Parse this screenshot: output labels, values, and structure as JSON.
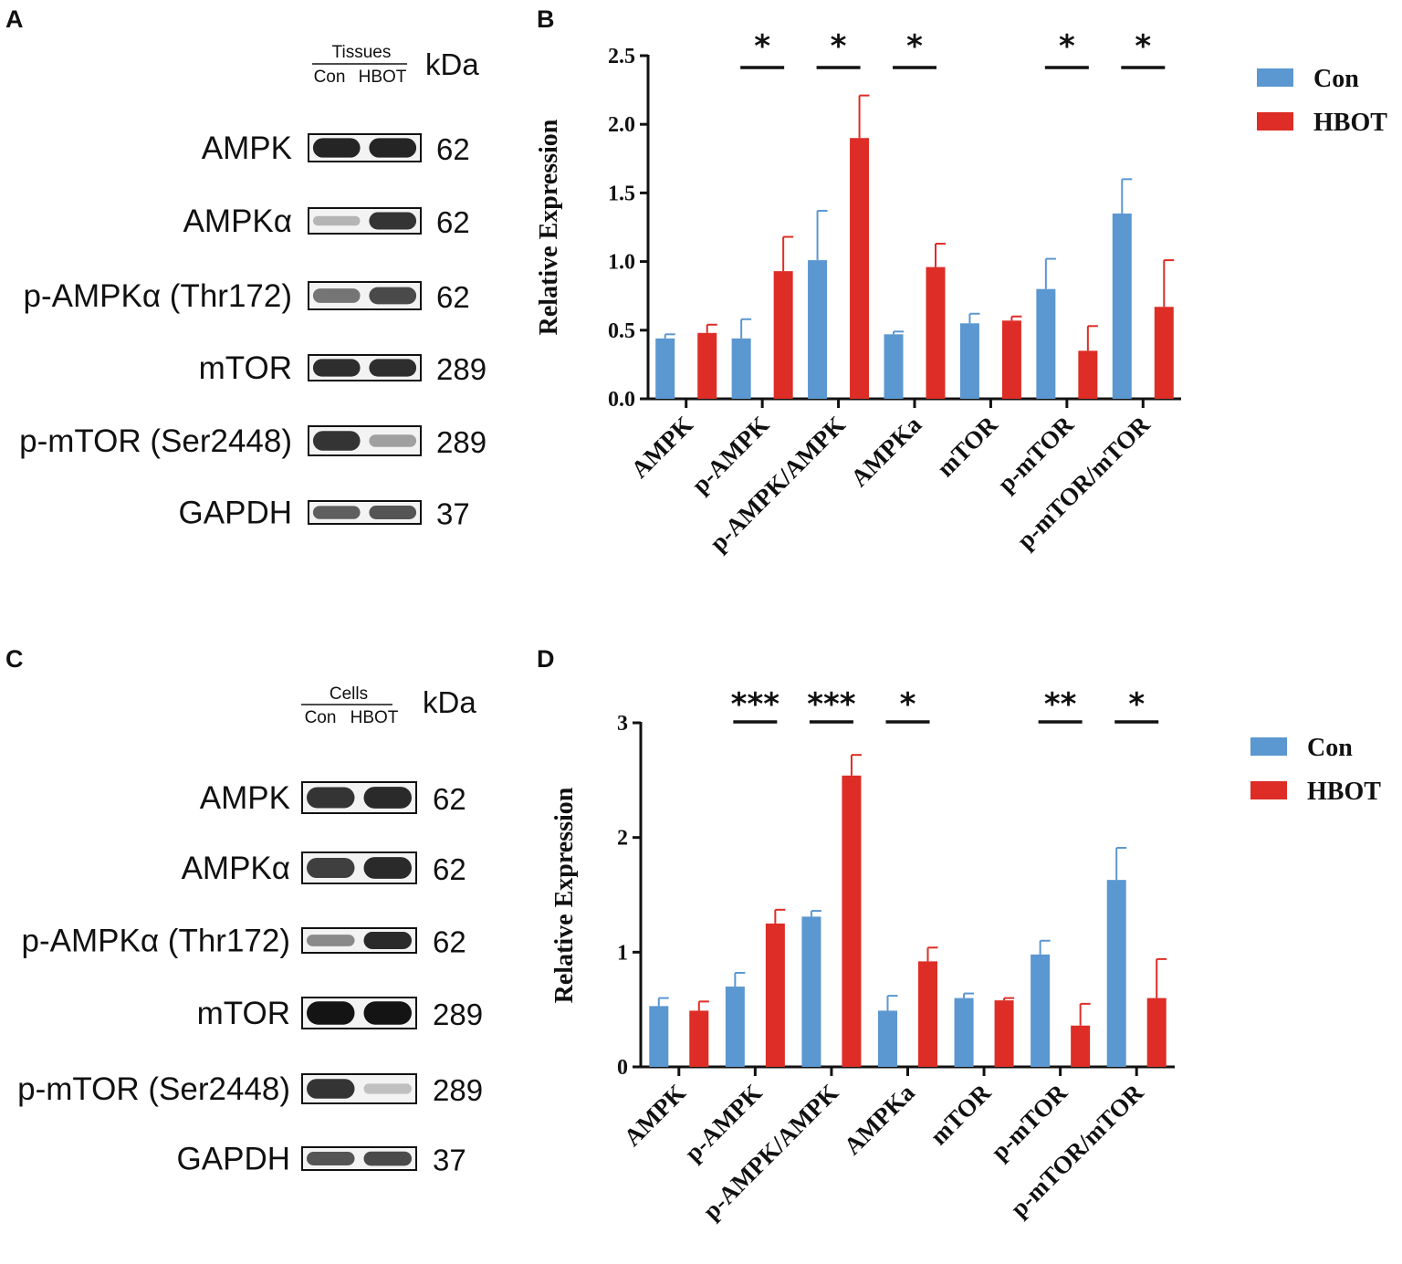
{
  "colors": {
    "con": "#5b97d0",
    "hbot": "#dd2d26",
    "band": "#1a1a1a",
    "axis": "#111111"
  },
  "blots": [
    {
      "panel": "A",
      "group_title": "Tissues",
      "lanes": [
        "Con",
        "HBOT"
      ],
      "kda_header": "kDa",
      "rows": [
        {
          "label": "AMPK",
          "kda": "62",
          "intensity": [
            0.92,
            0.92
          ]
        },
        {
          "label": "AMPKα",
          "kda": "62",
          "intensity": [
            0.25,
            0.85
          ]
        },
        {
          "label": "p-AMPKα (Thr172)",
          "kda": "62",
          "intensity": [
            0.55,
            0.75
          ]
        },
        {
          "label": "mTOR",
          "kda": "289",
          "intensity": [
            0.88,
            0.88
          ]
        },
        {
          "label": "p-mTOR (Ser2448)",
          "kda": "289",
          "intensity": [
            0.85,
            0.35
          ]
        },
        {
          "label": "GAPDH",
          "kda": "37",
          "intensity": [
            0.65,
            0.7
          ]
        }
      ]
    },
    {
      "panel": "C",
      "group_title": "Cells",
      "lanes": [
        "Con",
        "HBOT"
      ],
      "kda_header": "kDa",
      "rows": [
        {
          "label": "AMPK",
          "kda": "62",
          "intensity": [
            0.85,
            0.9
          ]
        },
        {
          "label": "AMPKα",
          "kda": "62",
          "intensity": [
            0.8,
            0.9
          ]
        },
        {
          "label": "p-AMPKα (Thr172)",
          "kda": "62",
          "intensity": [
            0.45,
            0.9
          ]
        },
        {
          "label": "mTOR",
          "kda": "289",
          "intensity": [
            1.0,
            1.0
          ]
        },
        {
          "label": "p-mTOR (Ser2448)",
          "kda": "289",
          "intensity": [
            0.85,
            0.2
          ]
        },
        {
          "label": "GAPDH",
          "kda": "37",
          "intensity": [
            0.7,
            0.75
          ]
        }
      ]
    }
  ],
  "chart_data": [
    {
      "panel": "B",
      "type": "bar",
      "title": "",
      "xlabel": "",
      "ylabel": "Relative Expression",
      "ylim": [
        0,
        2.5
      ],
      "yticks": [
        "0.0",
        "0.5",
        "1.0",
        "1.5",
        "2.0",
        "2.5"
      ],
      "categories": [
        "AMPK",
        "p-AMPK",
        "p-AMPK/AMPK",
        "AMPKa",
        "mTOR",
        "p-mTOR",
        "p-mTOR/mTOR"
      ],
      "series": [
        {
          "name": "Con",
          "values": [
            0.44,
            0.44,
            1.01,
            0.47,
            0.55,
            0.8,
            1.35
          ],
          "error": [
            0.03,
            0.14,
            0.36,
            0.02,
            0.07,
            0.22,
            0.25
          ]
        },
        {
          "name": "HBOT",
          "values": [
            0.48,
            0.93,
            1.9,
            0.96,
            0.57,
            0.35,
            0.67
          ],
          "error": [
            0.06,
            0.25,
            0.31,
            0.17,
            0.03,
            0.18,
            0.34
          ]
        }
      ],
      "significance": [
        "",
        "*",
        "*",
        "*",
        "",
        "*",
        "*"
      ],
      "legend_position": "top-right"
    },
    {
      "panel": "D",
      "type": "bar",
      "title": "",
      "xlabel": "",
      "ylabel": "Relative Expression",
      "ylim": [
        0,
        3
      ],
      "yticks": [
        "0",
        "1",
        "2",
        "3"
      ],
      "categories": [
        "AMPK",
        "p-AMPK",
        "p-AMPK/AMPK",
        "AMPKa",
        "mTOR",
        "p-mTOR",
        "p-mTOR/mTOR"
      ],
      "series": [
        {
          "name": "Con",
          "values": [
            0.53,
            0.7,
            1.31,
            0.49,
            0.6,
            0.98,
            1.63
          ],
          "error": [
            0.07,
            0.12,
            0.05,
            0.13,
            0.04,
            0.12,
            0.28
          ]
        },
        {
          "name": "HBOT",
          "values": [
            0.49,
            1.25,
            2.54,
            0.92,
            0.58,
            0.36,
            0.6
          ],
          "error": [
            0.08,
            0.12,
            0.18,
            0.12,
            0.02,
            0.19,
            0.34
          ]
        }
      ],
      "significance": [
        "",
        "***",
        "***",
        "*",
        "",
        "**",
        "*"
      ],
      "legend_position": "top-right"
    }
  ]
}
